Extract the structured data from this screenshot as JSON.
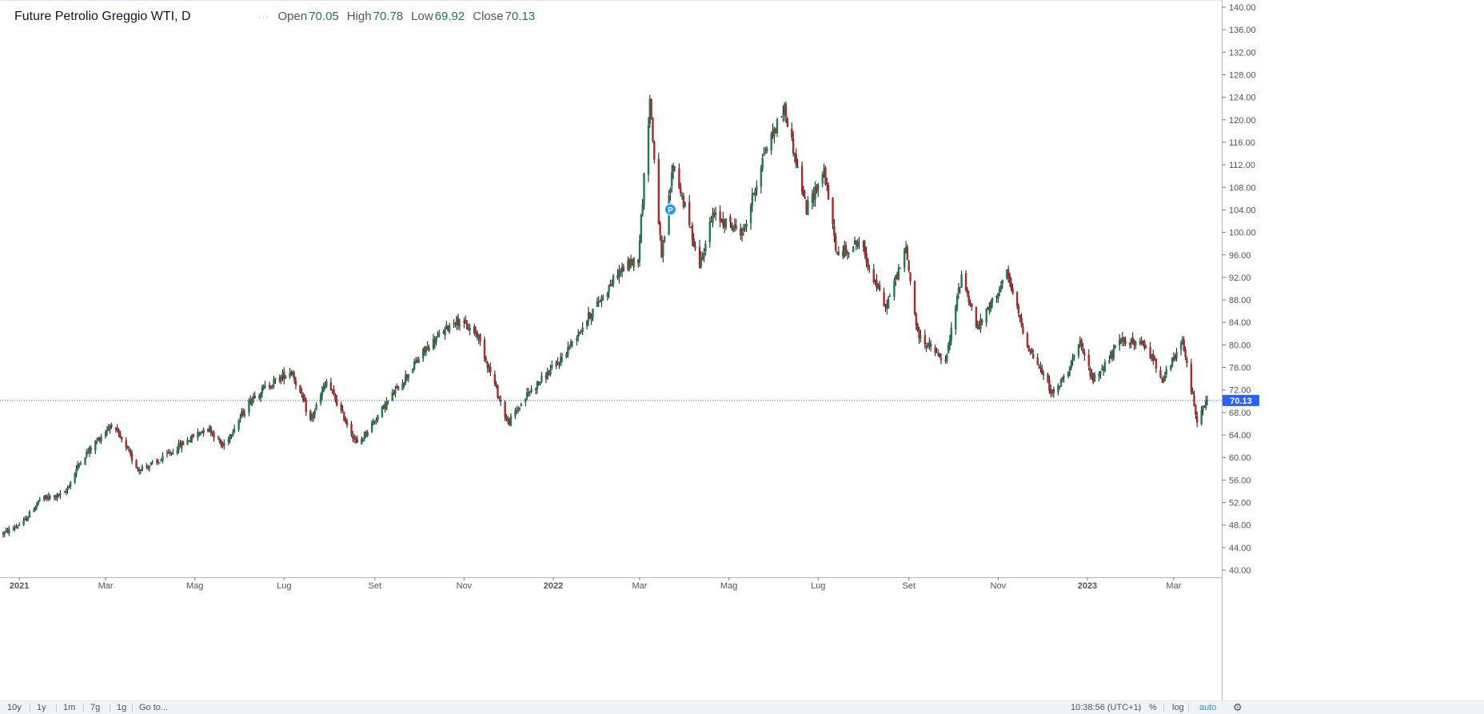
{
  "legend": {
    "title": "Future Petrolio Greggio WTI, D",
    "dots": "···",
    "open_label": "Open",
    "open_value": "70.05",
    "high_label": "High",
    "high_value": "70.78",
    "low_label": "Low",
    "low_value": "69.92",
    "close_label": "Close",
    "close_value": "70.13"
  },
  "price_badge": "70.13",
  "event_marker": "P",
  "colors": {
    "up": "#26a69a",
    "down": "#ef5350",
    "up_body": "#1e7d4f",
    "down_body": "#b0282c",
    "wick": "#111111",
    "price_line": "#2962ff",
    "badge": "#2962ff"
  },
  "bottom_bar": {
    "ranges": [
      "10y",
      "1y",
      "1m",
      "7g",
      "1g"
    ],
    "goto": "Go to...",
    "time": "10:38:56 (UTC+1)",
    "percent": "%",
    "log": "log",
    "auto": "auto",
    "settings_icon": "gear-icon"
  },
  "chart_data": {
    "type": "candlestick",
    "title": "Future Petrolio Greggio WTI, D",
    "ylim": [
      40,
      140
    ],
    "y_ticks": [
      "140.00",
      "136.00",
      "132.00",
      "128.00",
      "124.00",
      "120.00",
      "116.00",
      "112.00",
      "108.00",
      "104.00",
      "100.00",
      "96.00",
      "92.00",
      "88.00",
      "84.00",
      "80.00",
      "76.00",
      "72.00",
      "68.00",
      "64.00",
      "60.00",
      "56.00",
      "52.00",
      "48.00",
      "44.00",
      "40.00"
    ],
    "x_ticks": [
      {
        "label": "2021",
        "bold": true
      },
      {
        "label": "Mar",
        "bold": false
      },
      {
        "label": "Mag",
        "bold": false
      },
      {
        "label": "Lug",
        "bold": false
      },
      {
        "label": "Set",
        "bold": false
      },
      {
        "label": "Nov",
        "bold": false
      },
      {
        "label": "2022",
        "bold": true
      },
      {
        "label": "Mar",
        "bold": false
      },
      {
        "label": "Mag",
        "bold": false
      },
      {
        "label": "Lug",
        "bold": false
      },
      {
        "label": "Set",
        "bold": false
      },
      {
        "label": "Nov",
        "bold": false
      },
      {
        "label": "2023",
        "bold": true
      },
      {
        "label": "Mar",
        "bold": false
      }
    ],
    "x_tick_month_index": [
      0,
      2,
      4,
      6,
      8,
      10,
      12,
      14,
      16,
      18,
      20,
      22,
      24,
      26
    ],
    "last_close": 70.13,
    "price_path": [
      [
        "2020-12-21",
        46.5
      ],
      [
        "2021-01-04",
        48.5
      ],
      [
        "2021-01-15",
        52.5
      ],
      [
        "2021-02-01",
        53.5
      ],
      [
        "2021-02-12",
        59.5
      ],
      [
        "2021-03-05",
        66.0
      ],
      [
        "2021-03-23",
        58.0
      ],
      [
        "2021-04-05",
        59.0
      ],
      [
        "2021-04-20",
        62.0
      ],
      [
        "2021-05-10",
        65.5
      ],
      [
        "2021-05-20",
        62.0
      ],
      [
        "2021-06-10",
        71.0
      ],
      [
        "2021-07-06",
        75.5
      ],
      [
        "2021-07-19",
        66.5
      ],
      [
        "2021-07-30",
        73.5
      ],
      [
        "2021-08-20",
        62.3
      ],
      [
        "2021-09-10",
        70.0
      ],
      [
        "2021-10-05",
        79.0
      ],
      [
        "2021-10-26",
        84.5
      ],
      [
        "2021-11-10",
        82.0
      ],
      [
        "2021-12-01",
        66.0
      ],
      [
        "2021-12-15",
        71.5
      ],
      [
        "2022-01-05",
        77.0
      ],
      [
        "2022-01-25",
        85.0
      ],
      [
        "2022-02-15",
        93.0
      ],
      [
        "2022-02-28",
        95.5
      ],
      [
        "2022-03-08",
        123.7
      ],
      [
        "2022-03-16",
        95.0
      ],
      [
        "2022-03-24",
        112.3
      ],
      [
        "2022-04-11",
        94.3
      ],
      [
        "2022-04-20",
        103.0
      ],
      [
        "2022-05-11",
        100.0
      ],
      [
        "2022-05-25",
        114.0
      ],
      [
        "2022-06-08",
        122.1
      ],
      [
        "2022-06-23",
        104.0
      ],
      [
        "2022-07-05",
        111.0
      ],
      [
        "2022-07-14",
        95.8
      ],
      [
        "2022-07-29",
        98.5
      ],
      [
        "2022-08-16",
        86.5
      ],
      [
        "2022-08-30",
        97.0
      ],
      [
        "2022-09-07",
        81.9
      ],
      [
        "2022-09-26",
        76.7
      ],
      [
        "2022-10-07",
        92.6
      ],
      [
        "2022-10-18",
        82.8
      ],
      [
        "2022-11-07",
        92.6
      ],
      [
        "2022-11-21",
        80.0
      ],
      [
        "2022-12-09",
        71.0
      ],
      [
        "2022-12-27",
        80.0
      ],
      [
        "2023-01-05",
        73.7
      ],
      [
        "2023-01-25",
        81.0
      ],
      [
        "2023-02-10",
        79.7
      ],
      [
        "2023-02-22",
        74.0
      ],
      [
        "2023-03-07",
        80.5
      ],
      [
        "2023-03-17",
        66.7
      ],
      [
        "2023-03-24",
        70.1
      ]
    ]
  }
}
